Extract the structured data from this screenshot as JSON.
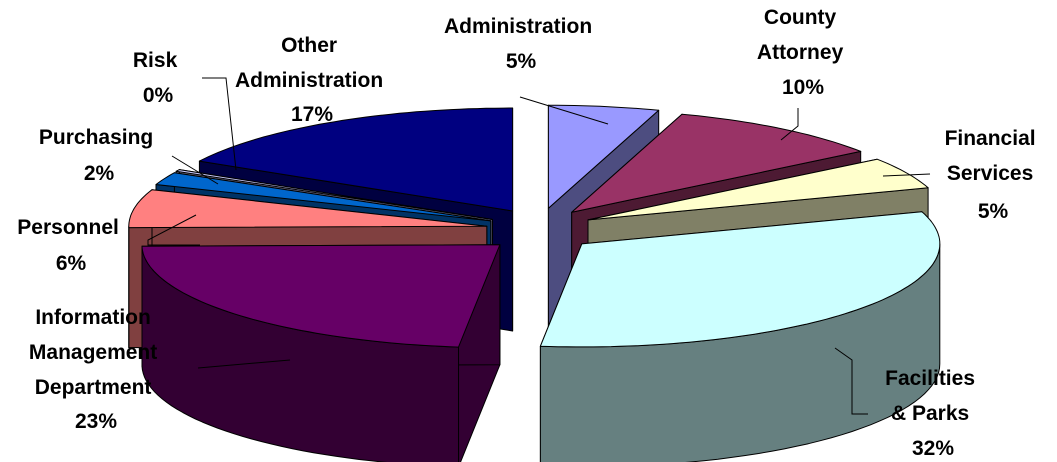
{
  "chart_data": {
    "type": "pie",
    "title": "",
    "exploded": true,
    "three_d": true,
    "legend": "none",
    "slices": [
      {
        "label_lines": [
          "Administration"
        ],
        "value_label": "5%",
        "value": 5,
        "color": "#9999ff",
        "side_color": "#4d4d80"
      },
      {
        "label_lines": [
          "County",
          "Attorney"
        ],
        "value_label": "10%",
        "value": 10,
        "color": "#993366",
        "side_color": "#4d1a33"
      },
      {
        "label_lines": [
          "Financial",
          "Services"
        ],
        "value_label": "5%",
        "value": 5,
        "color": "#ffffcc",
        "side_color": "#808066"
      },
      {
        "label_lines": [
          "Facilities",
          "& Parks"
        ],
        "value_label": "32%",
        "value": 32,
        "color": "#ccffff",
        "side_color": "#668080"
      },
      {
        "label_lines": [
          "Information",
          "Management",
          "Department"
        ],
        "value_label": "23%",
        "value": 23,
        "color": "#660066",
        "side_color": "#330033"
      },
      {
        "label_lines": [
          "Personnel"
        ],
        "value_label": "6%",
        "value": 6,
        "color": "#ff8080",
        "side_color": "#804040"
      },
      {
        "label_lines": [
          "Purchasing"
        ],
        "value_label": "2%",
        "value": 2,
        "color": "#0066cc",
        "side_color": "#003366"
      },
      {
        "label_lines": [
          "Risk"
        ],
        "value_label": "0%",
        "value": 0.3,
        "color": "#ccccff",
        "side_color": "#666680"
      },
      {
        "label_lines": [
          "Other",
          "Administration"
        ],
        "value_label": "17%",
        "value": 17,
        "color": "#000080",
        "side_color": "#000040"
      }
    ]
  }
}
